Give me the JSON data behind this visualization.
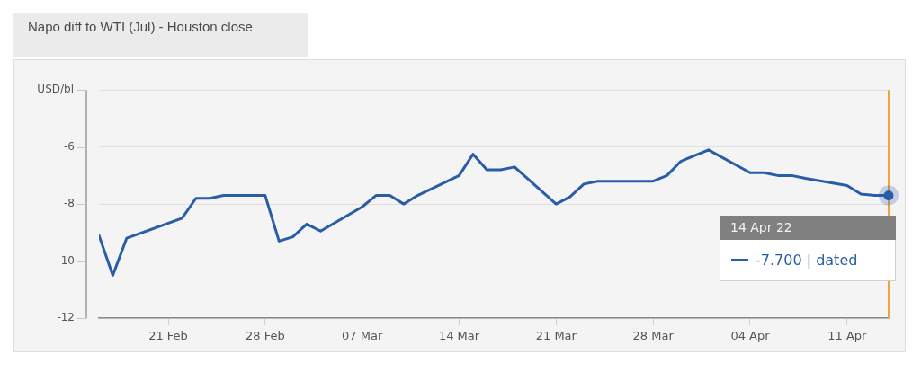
{
  "chart_data": {
    "type": "line",
    "title": "Napo diff to WTI (Jul) - Houston close",
    "ylabel": "USD/bl",
    "x": [
      "--02-16",
      "--02-17",
      "--02-18",
      "--02-22",
      "--02-23",
      "--02-24",
      "--02-25",
      "--02-28",
      "--03-01",
      "--03-02",
      "--03-03",
      "--03-04",
      "--03-07",
      "--03-08",
      "--03-09",
      "--03-10",
      "--03-11",
      "--03-14",
      "--03-15",
      "--03-16",
      "--03-17",
      "--03-18",
      "--03-21",
      "--03-22",
      "--03-23",
      "--03-24",
      "--03-25",
      "--03-28",
      "--03-29",
      "--03-30",
      "--03-31",
      "--04-01",
      "--04-04",
      "--04-05",
      "--04-06",
      "--04-07",
      "--04-08",
      "--04-11",
      "--04-12",
      "--04-13",
      "--04-14"
    ],
    "series": [
      {
        "color": "#2a5da8",
        "values": [
          -9.1,
          -10.5,
          -9.2,
          -8.5,
          -7.8,
          -7.8,
          -7.7,
          -7.7,
          -9.3,
          -9.15,
          -8.7,
          -8.95,
          -8.1,
          -7.7,
          -7.7,
          -8.0,
          -7.7,
          -7.0,
          -6.25,
          -6.8,
          -6.8,
          -6.7,
          -8.0,
          -7.75,
          -7.3,
          -7.2,
          -7.2,
          -7.2,
          -7.0,
          -6.5,
          -6.3,
          -6.1,
          -6.9,
          -6.9,
          -7.0,
          -7.0,
          -7.1,
          -7.35,
          -7.65,
          -7.7,
          -7.7
        ]
      }
    ],
    "xlim": [
      "--02-16",
      "--04-14"
    ],
    "xticks": [
      {
        "value": "--02-21",
        "label": "21 Feb"
      },
      {
        "value": "--02-28",
        "label": "28 Feb"
      },
      {
        "value": "--03-07",
        "label": "07 Mar"
      },
      {
        "value": "--03-14",
        "label": "14 Mar"
      },
      {
        "value": "--03-21",
        "label": "21 Mar"
      },
      {
        "value": "--03-28",
        "label": "28 Mar"
      },
      {
        "value": "--04-04",
        "label": "04 Apr"
      },
      {
        "value": "--04-11",
        "label": "11 Apr"
      }
    ],
    "ylim": [
      -12,
      -4
    ],
    "yticks": [
      -12,
      -10,
      -8,
      -6,
      {
        "value": -4,
        "label": null
      }
    ],
    "grid": "y",
    "marker": "none",
    "ref_lines": [
      {
        "axis": "x",
        "value": "--04-14",
        "color": "#f0a23c"
      }
    ],
    "annotations": [
      "14 Apr 22",
      "-7.700 | dated"
    ]
  }
}
